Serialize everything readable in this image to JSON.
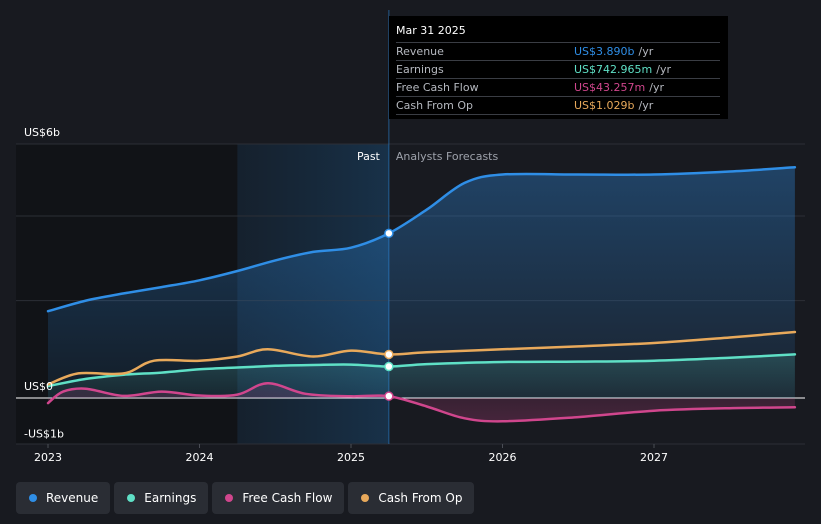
{
  "chart_data": {
    "type": "line",
    "y_axis": {
      "min": -1,
      "max": 6,
      "ticks": [
        {
          "value": 6,
          "label": "US$6b"
        },
        {
          "value": 0,
          "label": "US$0"
        },
        {
          "value": -1,
          "label": "-US$1b"
        }
      ]
    },
    "x_axis": {
      "min": 2022.9,
      "max": 2027.93,
      "ticks": [
        {
          "value": 2023,
          "label": "2023"
        },
        {
          "value": 2024,
          "label": "2024"
        },
        {
          "value": 2025,
          "label": "2025"
        },
        {
          "value": 2026,
          "label": "2026"
        },
        {
          "value": 2027,
          "label": "2027"
        }
      ]
    },
    "divider_x": 2025.25,
    "highlight_start_x": 2024.25,
    "regions": {
      "past": "Past",
      "forecast": "Analysts Forecasts"
    },
    "series": [
      {
        "name": "Revenue",
        "color": "#2f8ee6",
        "fill": true,
        "points": [
          [
            2023.0,
            2.05
          ],
          [
            2023.25,
            2.3
          ],
          [
            2023.5,
            2.47
          ],
          [
            2023.75,
            2.62
          ],
          [
            2024.0,
            2.78
          ],
          [
            2024.25,
            3.0
          ],
          [
            2024.5,
            3.25
          ],
          [
            2024.75,
            3.45
          ],
          [
            2025.0,
            3.55
          ],
          [
            2025.25,
            3.89
          ],
          [
            2025.5,
            4.45
          ],
          [
            2025.75,
            5.08
          ],
          [
            2026.0,
            5.28
          ],
          [
            2026.5,
            5.28
          ],
          [
            2027.0,
            5.28
          ],
          [
            2027.5,
            5.35
          ],
          [
            2027.93,
            5.45
          ]
        ]
      },
      {
        "name": "Earnings",
        "color": "#5fe0c6",
        "fill": true,
        "points": [
          [
            2023.0,
            0.28
          ],
          [
            2023.25,
            0.45
          ],
          [
            2023.5,
            0.55
          ],
          [
            2023.75,
            0.6
          ],
          [
            2024.0,
            0.68
          ],
          [
            2024.25,
            0.72
          ],
          [
            2024.5,
            0.76
          ],
          [
            2024.75,
            0.78
          ],
          [
            2025.0,
            0.79
          ],
          [
            2025.25,
            0.743
          ],
          [
            2025.5,
            0.8
          ],
          [
            2026.0,
            0.85
          ],
          [
            2026.5,
            0.86
          ],
          [
            2027.0,
            0.88
          ],
          [
            2027.5,
            0.95
          ],
          [
            2027.93,
            1.03
          ]
        ]
      },
      {
        "name": "Free Cash Flow",
        "color": "#d0468d",
        "fill": true,
        "points": [
          [
            2023.0,
            -0.12
          ],
          [
            2023.1,
            0.15
          ],
          [
            2023.25,
            0.22
          ],
          [
            2023.5,
            0.05
          ],
          [
            2023.75,
            0.15
          ],
          [
            2024.0,
            0.06
          ],
          [
            2024.25,
            0.08
          ],
          [
            2024.45,
            0.35
          ],
          [
            2024.7,
            0.1
          ],
          [
            2025.0,
            0.04
          ],
          [
            2025.25,
            0.043
          ],
          [
            2025.5,
            -0.2
          ],
          [
            2025.75,
            -0.48
          ],
          [
            2026.0,
            -0.55
          ],
          [
            2026.5,
            -0.45
          ],
          [
            2027.0,
            -0.3
          ],
          [
            2027.5,
            -0.24
          ],
          [
            2027.93,
            -0.22
          ]
        ]
      },
      {
        "name": "Cash From Op",
        "color": "#e8a95b",
        "fill": false,
        "points": [
          [
            2023.0,
            0.32
          ],
          [
            2023.2,
            0.58
          ],
          [
            2023.5,
            0.58
          ],
          [
            2023.7,
            0.88
          ],
          [
            2024.0,
            0.88
          ],
          [
            2024.25,
            0.98
          ],
          [
            2024.45,
            1.15
          ],
          [
            2024.75,
            0.98
          ],
          [
            2025.0,
            1.12
          ],
          [
            2025.25,
            1.029
          ],
          [
            2025.5,
            1.08
          ],
          [
            2026.0,
            1.15
          ],
          [
            2026.5,
            1.22
          ],
          [
            2027.0,
            1.3
          ],
          [
            2027.5,
            1.43
          ],
          [
            2027.93,
            1.56
          ]
        ]
      }
    ],
    "highlight_points": [
      {
        "series": "Revenue",
        "x": 2025.25,
        "y": 3.89
      },
      {
        "series": "Earnings",
        "x": 2025.25,
        "y": 0.743
      },
      {
        "series": "Free Cash Flow",
        "x": 2025.25,
        "y": 0.043
      },
      {
        "series": "Cash From Op",
        "x": 2025.25,
        "y": 1.029
      }
    ]
  },
  "tooltip": {
    "date": "Mar 31 2025",
    "rows": [
      {
        "name": "Revenue",
        "value": "US$3.890b",
        "unit": "/yr",
        "color": "#2f8ee6"
      },
      {
        "name": "Earnings",
        "value": "US$742.965m",
        "unit": "/yr",
        "color": "#5fe0c6"
      },
      {
        "name": "Free Cash Flow",
        "value": "US$43.257m",
        "unit": "/yr",
        "color": "#d0468d"
      },
      {
        "name": "Cash From Op",
        "value": "US$1.029b",
        "unit": "/yr",
        "color": "#e8a95b"
      }
    ]
  },
  "legend": [
    {
      "label": "Revenue",
      "color": "#2f8ee6"
    },
    {
      "label": "Earnings",
      "color": "#5fe0c6"
    },
    {
      "label": "Free Cash Flow",
      "color": "#d0468d"
    },
    {
      "label": "Cash From Op",
      "color": "#e8a95b"
    }
  ]
}
